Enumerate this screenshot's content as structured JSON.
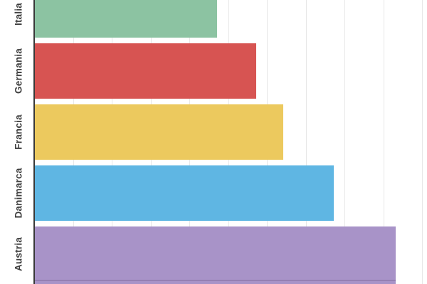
{
  "chart_data": {
    "type": "bar",
    "orientation": "horizontal",
    "title": "",
    "xlabel": "",
    "ylabel": "",
    "categories": [
      "Italia",
      "Germania",
      "Francia",
      "Danimarca",
      "Austria"
    ],
    "values": [
      4.7,
      5.7,
      6.4,
      7.7,
      9.3
    ],
    "colors": [
      "#8CC3A2",
      "#D75452",
      "#ECC95E",
      "#5FB6E3",
      "#A893C8"
    ],
    "xlim": [
      0,
      10
    ],
    "grid": true,
    "gridline_color": "#E7E7E7",
    "axis_color": "#383838",
    "label_color": "#3E3E3E",
    "legend": "none"
  }
}
